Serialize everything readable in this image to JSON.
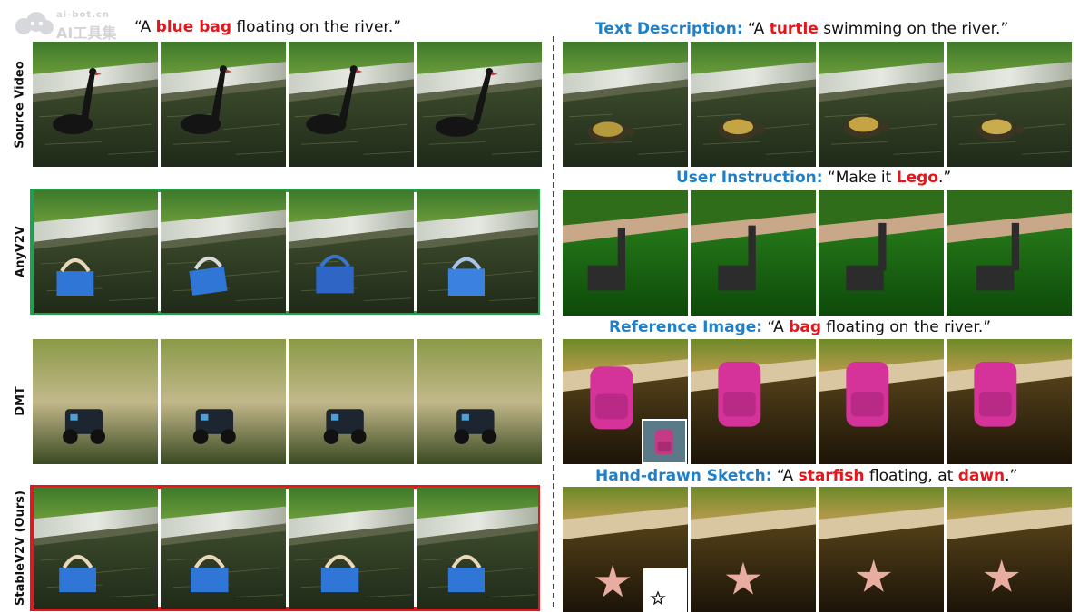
{
  "watermark": {
    "line1": "ai-bot.cn",
    "line2": "AI工具集"
  },
  "left_panel": {
    "caption": {
      "open": "“A ",
      "highlight": "blue bag",
      "rest": " floating on the river.”"
    },
    "rows": [
      {
        "label": "Source Video",
        "content": "black swan"
      },
      {
        "label": "AnyV2V",
        "content": "blue bag",
        "box_color": "#1ba34a"
      },
      {
        "label": "DMT",
        "content": "robot toy"
      },
      {
        "label": "StableV2V (Ours)",
        "content": "blue bag",
        "box_color": "#e3161b"
      }
    ]
  },
  "right_panel": {
    "rows": [
      {
        "label": "Text Description:",
        "open": " “A ",
        "highlight": "turtle",
        "rest": " swimming on the river.”",
        "content": "turtle"
      },
      {
        "label": "User Instruction:",
        "open": " “Make it ",
        "highlight": "Lego",
        "rest": ".”",
        "content": "lego swan"
      },
      {
        "label": "Reference Image:",
        "open": " “A ",
        "highlight": "bag",
        "rest": " floating on the river.”",
        "content": "pink backpack"
      },
      {
        "label": "Hand-drawn Sketch:",
        "open": " “A ",
        "highlight": "starfish",
        "rest": " floating, at ",
        "highlight2": "dawn",
        "end": ".”",
        "content": "starfish"
      }
    ]
  },
  "colors": {
    "label_blue": "#1f7fc8",
    "highlight_red": "#e3161b",
    "good_box": "#1ba34a",
    "ours_box": "#e3161b"
  }
}
